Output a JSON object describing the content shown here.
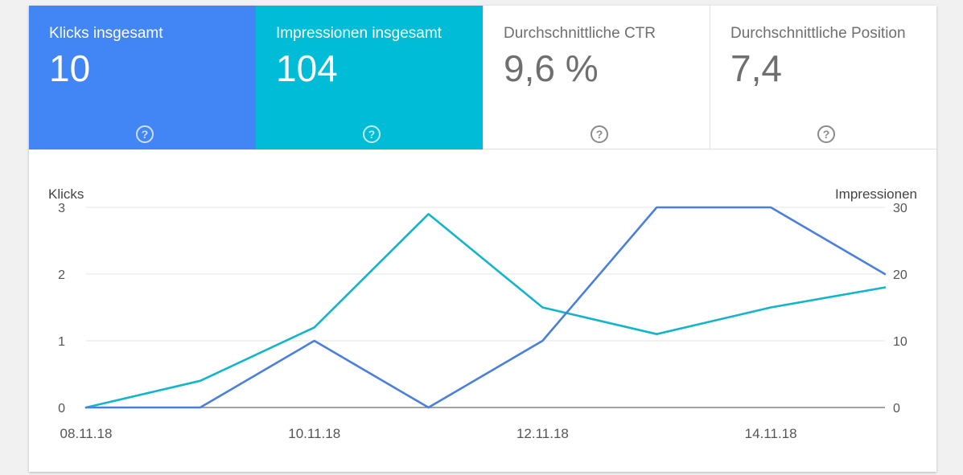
{
  "tiles": [
    {
      "label": "Klicks insgesamt",
      "value": "10",
      "bg": "#4285f4",
      "active": true
    },
    {
      "label": "Impressionen insgesamt",
      "value": "104",
      "bg": "#00bcd6",
      "active": true
    },
    {
      "label": "Durchschnittliche CTR",
      "value": "9,6 %",
      "bg": "#ffffff",
      "active": false
    },
    {
      "label": "Durchschnittliche Position",
      "value": "7,4",
      "bg": "#ffffff",
      "active": false
    }
  ],
  "help_icon": "help-circle-icon",
  "chart_data": {
    "type": "line",
    "x": [
      "08.11.18",
      "09.11.18",
      "10.11.18",
      "11.11.18",
      "12.11.18",
      "13.11.18",
      "14.11.18",
      "15.11.18"
    ],
    "x_tick_labels": [
      "08.11.18",
      "10.11.18",
      "12.11.18",
      "14.11.18"
    ],
    "ylabel": "Klicks",
    "ylabel_right": "Impressionen",
    "ylim": [
      0,
      3
    ],
    "ylim_right": [
      0,
      30
    ],
    "yticks": [
      0,
      1,
      2,
      3
    ],
    "yticks_right": [
      0,
      10,
      20,
      30
    ],
    "grid": true,
    "series": [
      {
        "axis": "left",
        "color": "#4a7fde",
        "values": [
          0,
          0,
          1,
          0,
          1,
          3,
          3,
          2
        ]
      },
      {
        "axis": "right",
        "color": "#13b5cb",
        "values": [
          0,
          4,
          12,
          29,
          15,
          11,
          15,
          18
        ]
      }
    ]
  }
}
